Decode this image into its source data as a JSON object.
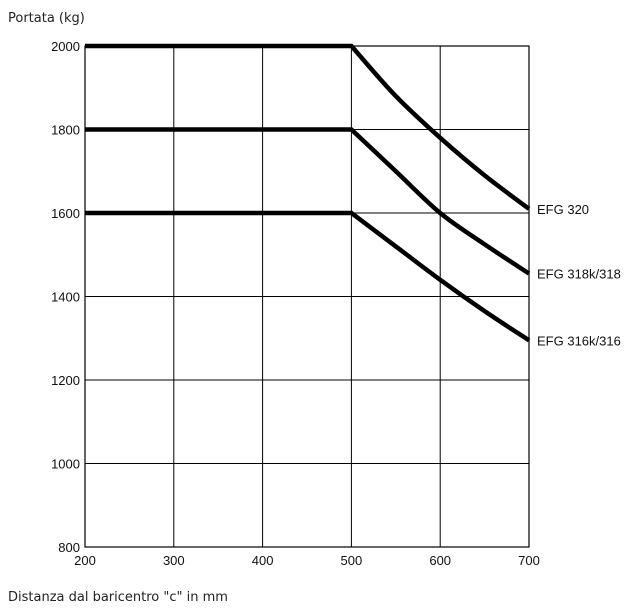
{
  "chart_data": {
    "type": "line",
    "ylabel": "Portata (kg)",
    "xlabel": "Distanza dal baricentro \"c\" in mm",
    "xlim": [
      200,
      700
    ],
    "ylim": [
      800,
      2000
    ],
    "xticks": [
      200,
      300,
      400,
      500,
      600,
      700
    ],
    "yticks": [
      800,
      1000,
      1200,
      1400,
      1600,
      1800,
      2000
    ],
    "grid": true,
    "line_color": "#000000",
    "series": [
      {
        "name": "EFG 320",
        "x": [
          200,
          500,
          550,
          600,
          650,
          700
        ],
        "y": [
          2000,
          2000,
          1880,
          1780,
          1690,
          1610
        ]
      },
      {
        "name": "EFG 318k/318",
        "x": [
          200,
          500,
          550,
          600,
          650,
          700
        ],
        "y": [
          1800,
          1800,
          1700,
          1600,
          1525,
          1455
        ]
      },
      {
        "name": "EFG 316k/316",
        "x": [
          200,
          500,
          550,
          600,
          650,
          700
        ],
        "y": [
          1600,
          1600,
          1520,
          1440,
          1365,
          1295
        ]
      }
    ]
  }
}
